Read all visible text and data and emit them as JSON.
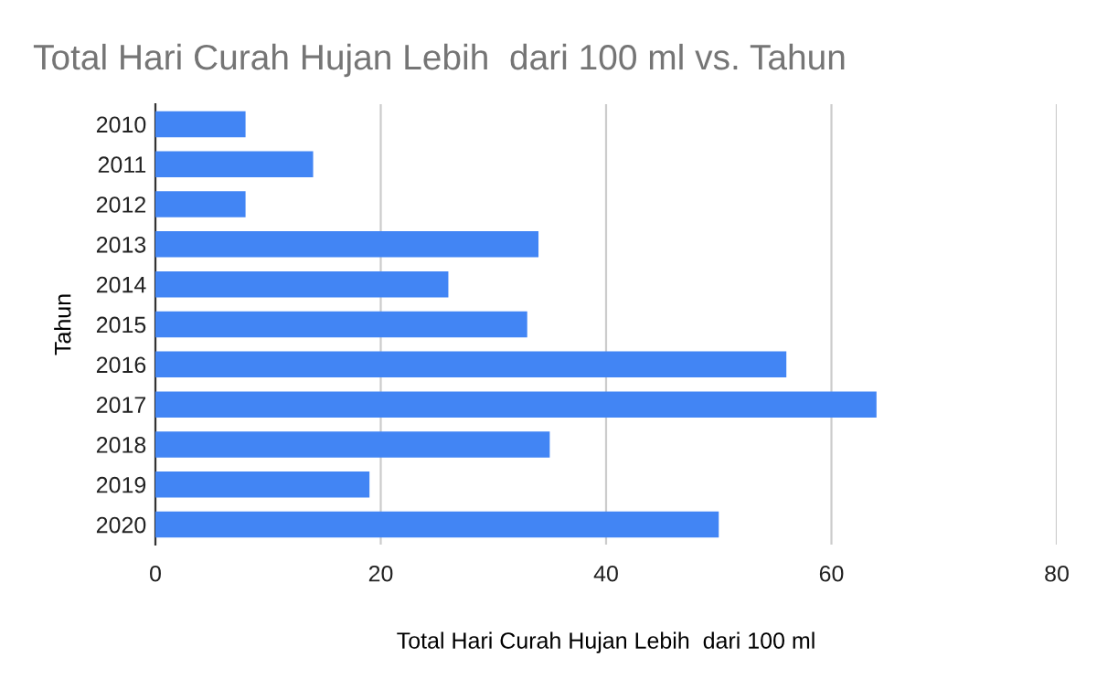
{
  "chart_data": {
    "type": "bar",
    "orientation": "horizontal",
    "title": "Total Hari Curah Hujan Lebih  dari 100 ml vs. Tahun",
    "xlabel": "Total Hari Curah Hujan Lebih  dari 100 ml",
    "ylabel": "Tahun",
    "categories": [
      "2010",
      "2011",
      "2012",
      "2013",
      "2014",
      "2015",
      "2016",
      "2017",
      "2018",
      "2019",
      "2020"
    ],
    "values": [
      8,
      14,
      8,
      34,
      26,
      33,
      56,
      64,
      35,
      19,
      50
    ],
    "color": "#4285f4",
    "xlim": [
      0,
      80
    ],
    "xticks": [
      0,
      20,
      40,
      60,
      80
    ],
    "grid": "x",
    "legend": false
  }
}
